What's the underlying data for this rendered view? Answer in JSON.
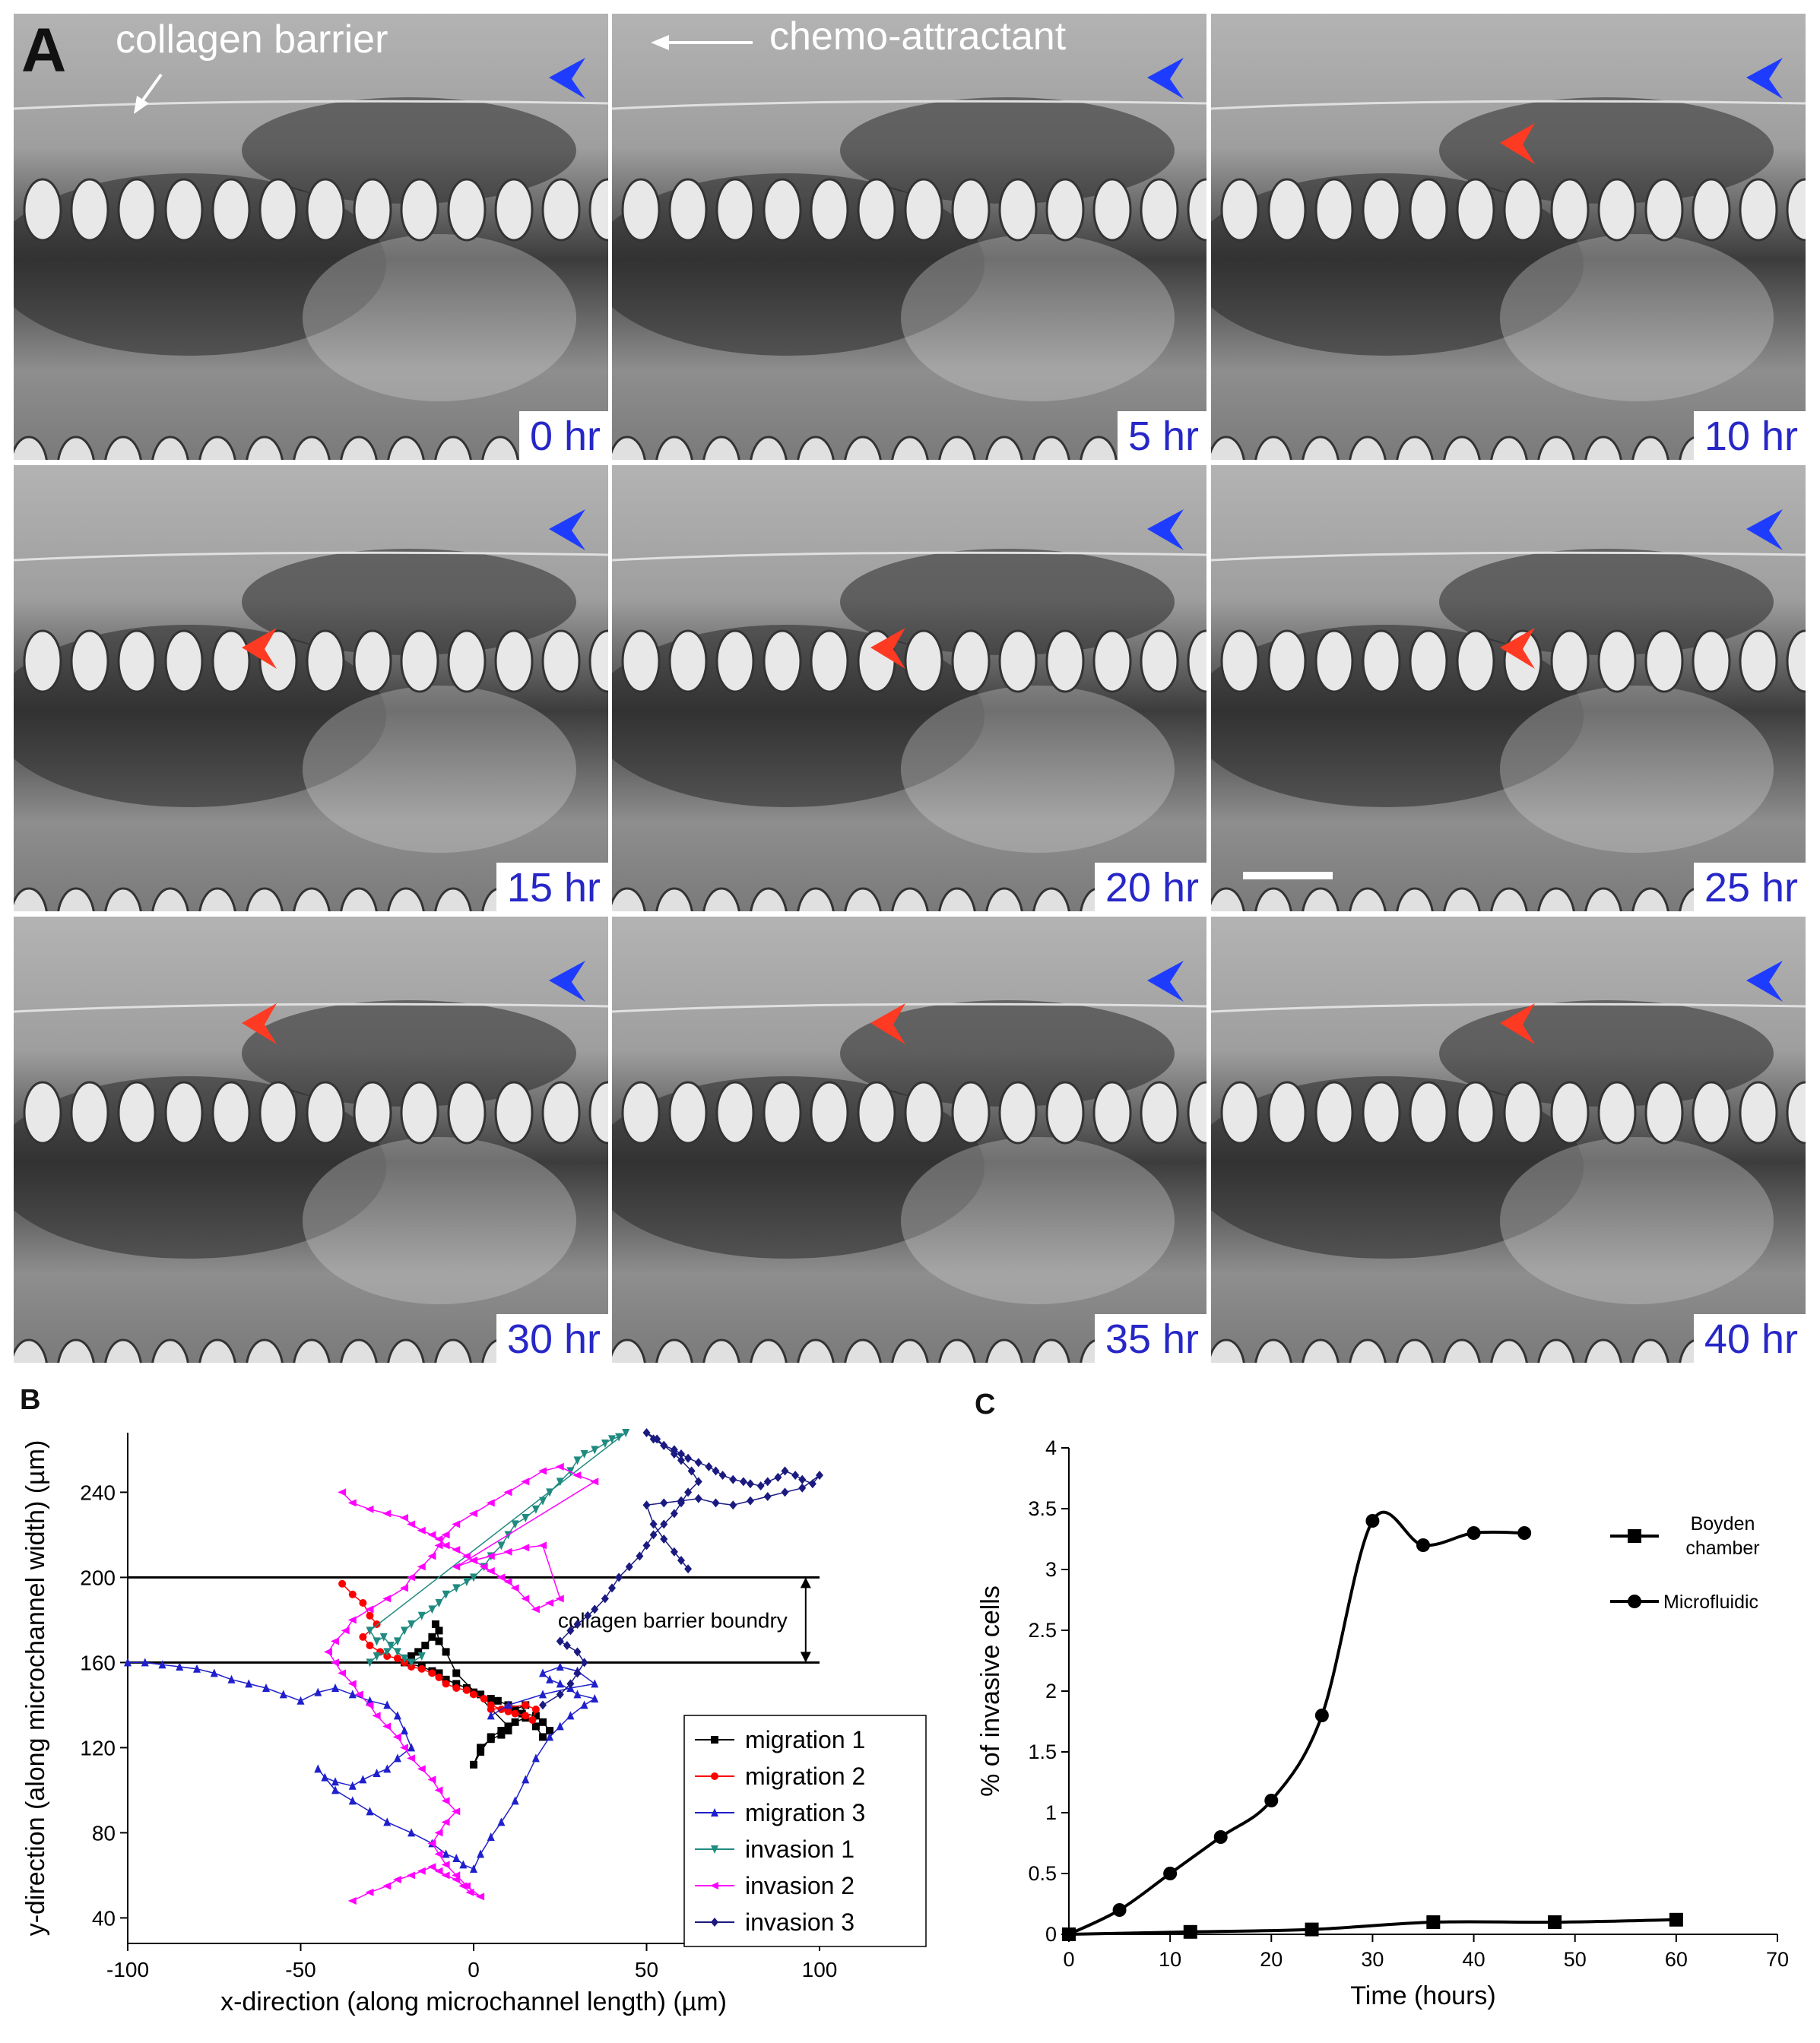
{
  "panelA": {
    "letter": "A",
    "labels": {
      "collagen": "collagen barrier",
      "chemo": "chemo-attractant"
    },
    "frames": [
      {
        "time": "0 hr",
        "red_arrow": false,
        "scale_bar": false
      },
      {
        "time": "5 hr",
        "red_arrow": false,
        "scale_bar": false
      },
      {
        "time": "10 hr",
        "red_arrow": true,
        "scale_bar": false
      },
      {
        "time": "15 hr",
        "red_arrow": true,
        "scale_bar": false
      },
      {
        "time": "20 hr",
        "red_arrow": true,
        "scale_bar": false
      },
      {
        "time": "25 hr",
        "red_arrow": true,
        "scale_bar": true
      },
      {
        "time": "30 hr",
        "red_arrow": true,
        "scale_bar": false
      },
      {
        "time": "35 hr",
        "red_arrow": true,
        "scale_bar": false
      },
      {
        "time": "40 hr",
        "red_arrow": true,
        "scale_bar": false
      }
    ],
    "colors": {
      "time_label": "#2727c8",
      "blue_arrow": "#1e3cff",
      "red_arrow": "#ff3a22"
    }
  },
  "panelB": {
    "letter": "B"
  },
  "panelC": {
    "letter": "C"
  },
  "chart_data": [
    {
      "type": "line",
      "xlabel": "x-direction (along microchannel length) (µm)",
      "ylabel": "y-direction (along microchannel width) (µm)",
      "xlim": [
        -100,
        100
      ],
      "ylim": [
        28,
        268
      ],
      "xticks": [
        -100,
        -50,
        0,
        50,
        100
      ],
      "yticks": [
        40,
        80,
        120,
        160,
        200,
        240
      ],
      "hlines": [
        160,
        200
      ],
      "annotation": "collagen barrier boundry",
      "legend_position": "bottom-right",
      "series": [
        {
          "name": "migration 1",
          "color": "#000000",
          "marker": "square",
          "x": [
            -10,
            -12,
            -14,
            -16,
            -18,
            -20,
            -15,
            -12,
            -10,
            -8,
            -5,
            -2,
            0,
            2,
            5,
            7,
            10,
            12,
            15,
            14,
            18,
            20,
            22,
            20,
            18,
            15,
            12,
            10,
            8,
            5,
            2,
            0,
            2,
            5,
            8,
            10,
            -5,
            -8,
            -10,
            -11
          ],
          "y": [
            175,
            172,
            168,
            165,
            163,
            160,
            158,
            156,
            155,
            152,
            150,
            148,
            146,
            145,
            143,
            142,
            140,
            138,
            140,
            136,
            135,
            132,
            128,
            125,
            130,
            134,
            132,
            128,
            126,
            124,
            120,
            112,
            118,
            125,
            128,
            130,
            155,
            165,
            170,
            178
          ]
        },
        {
          "name": "migration 2",
          "color": "#ff0000",
          "marker": "circle",
          "x": [
            -38,
            -35,
            -32,
            -30,
            -28,
            -32,
            -30,
            -27,
            -25,
            -22,
            -20,
            -18,
            -15,
            -12,
            -10,
            -8,
            -5,
            -2,
            0,
            3,
            5,
            8,
            10,
            12,
            15,
            17,
            18,
            15,
            10,
            5
          ],
          "y": [
            197,
            192,
            188,
            182,
            178,
            172,
            168,
            165,
            163,
            162,
            160,
            158,
            157,
            155,
            153,
            150,
            148,
            147,
            145,
            143,
            140,
            138,
            137,
            136,
            135,
            133,
            138,
            140,
            139,
            138
          ]
        },
        {
          "name": "migration 3",
          "color": "#1f1fcc",
          "marker": "triangle-up",
          "x": [
            -100,
            -95,
            -90,
            -85,
            -80,
            -75,
            -70,
            -65,
            -60,
            -55,
            -50,
            -45,
            -40,
            -35,
            -30,
            -25,
            -22,
            -20,
            -18,
            -22,
            -25,
            -28,
            -32,
            -35,
            -40,
            -43,
            -45,
            -40,
            -35,
            -30,
            -25,
            -18,
            -12,
            -8,
            -5,
            -3,
            0,
            2,
            5,
            8,
            12,
            15,
            18,
            22,
            25,
            28,
            32,
            35,
            30,
            25,
            22,
            20,
            25,
            30,
            35,
            28,
            20,
            10,
            5
          ],
          "y": [
            160,
            160,
            159,
            158,
            157,
            155,
            152,
            150,
            148,
            145,
            142,
            146,
            148,
            145,
            142,
            140,
            135,
            128,
            120,
            115,
            110,
            108,
            105,
            102,
            104,
            106,
            110,
            100,
            95,
            90,
            85,
            80,
            75,
            70,
            68,
            65,
            63,
            70,
            78,
            85,
            95,
            105,
            115,
            125,
            130,
            135,
            140,
            143,
            145,
            150,
            152,
            155,
            158,
            156,
            150,
            148,
            145,
            140,
            135
          ]
        },
        {
          "name": "invasion 1",
          "color": "#1f8a80",
          "marker": "triangle-down",
          "x": [
            -30,
            -28,
            -25,
            -22,
            -20,
            -18,
            -15,
            -12,
            -10,
            -8,
            -5,
            -2,
            0,
            3,
            5,
            8,
            10,
            12,
            15,
            18,
            20,
            22,
            25,
            28,
            30,
            32,
            35,
            38,
            40,
            42,
            44,
            -30,
            -28,
            -26,
            -24,
            -22,
            -20,
            -18,
            -15
          ],
          "y": [
            160,
            163,
            165,
            170,
            175,
            178,
            182,
            185,
            188,
            192,
            195,
            198,
            200,
            205,
            210,
            215,
            220,
            225,
            228,
            232,
            236,
            240,
            245,
            250,
            255,
            258,
            260,
            263,
            265,
            266,
            268,
            175,
            170,
            172,
            168,
            165,
            162,
            160,
            163
          ]
        },
        {
          "name": "invasion 2",
          "color": "#ff00ff",
          "marker": "triangle-left",
          "x": [
            -35,
            -30,
            -25,
            -22,
            -18,
            -15,
            -12,
            -10,
            -8,
            -5,
            -3,
            -1,
            2,
            -2,
            -5,
            -8,
            -10,
            -12,
            -10,
            -8,
            -5,
            -8,
            -10,
            -12,
            -15,
            -18,
            -20,
            -22,
            -25,
            -28,
            -30,
            -33,
            -35,
            -38,
            -40,
            -42,
            -40,
            -37,
            -35,
            -30,
            -25,
            -20,
            -18,
            -15,
            -12,
            -10,
            -8,
            -5,
            0,
            5,
            10,
            15,
            20,
            25,
            30,
            35,
            -5,
            0,
            5,
            10,
            15,
            20,
            25,
            22,
            18,
            15,
            12,
            10,
            8,
            5,
            3,
            0,
            -2,
            -5,
            -8,
            -10,
            -12,
            -15,
            -18,
            -20,
            -25,
            -30,
            -35,
            -38
          ],
          "y": [
            48,
            52,
            55,
            58,
            60,
            62,
            64,
            62,
            60,
            58,
            55,
            52,
            50,
            55,
            60,
            65,
            70,
            75,
            80,
            85,
            90,
            95,
            100,
            105,
            110,
            115,
            120,
            125,
            130,
            135,
            140,
            145,
            150,
            155,
            160,
            165,
            170,
            175,
            180,
            185,
            190,
            195,
            200,
            205,
            210,
            215,
            220,
            225,
            230,
            235,
            240,
            245,
            250,
            252,
            248,
            245,
            205,
            208,
            210,
            212,
            214,
            215,
            190,
            188,
            185,
            190,
            195,
            198,
            200,
            203,
            205,
            208,
            210,
            213,
            215,
            218,
            220,
            222,
            225,
            228,
            230,
            232,
            235,
            240
          ]
        },
        {
          "name": "invasion 3",
          "color": "#1a1a80",
          "marker": "diamond",
          "x": [
            20,
            25,
            28,
            30,
            32,
            30,
            27,
            25,
            28,
            30,
            33,
            35,
            38,
            40,
            42,
            45,
            48,
            50,
            52,
            55,
            58,
            60,
            62,
            65,
            63,
            60,
            58,
            55,
            52,
            50,
            53,
            55,
            58,
            60,
            62,
            65,
            68,
            70,
            72,
            75,
            78,
            80,
            83,
            85,
            88,
            90,
            93,
            95,
            98,
            100,
            95,
            90,
            85,
            80,
            75,
            70,
            65,
            60,
            55,
            50,
            52,
            55,
            58,
            60,
            62
          ],
          "y": [
            140,
            145,
            150,
            155,
            160,
            165,
            168,
            170,
            175,
            178,
            182,
            185,
            190,
            195,
            200,
            205,
            210,
            215,
            220,
            225,
            230,
            235,
            240,
            245,
            250,
            255,
            258,
            262,
            265,
            268,
            265,
            262,
            260,
            258,
            256,
            254,
            252,
            250,
            248,
            246,
            245,
            244,
            243,
            245,
            247,
            250,
            248,
            246,
            244,
            248,
            242,
            240,
            238,
            236,
            234,
            235,
            237,
            236,
            235,
            234,
            225,
            218,
            212,
            208,
            204
          ]
        }
      ]
    },
    {
      "type": "line",
      "xlabel": "Time (hours)",
      "ylabel": "% of invasive cells",
      "xlim": [
        0,
        70
      ],
      "ylim": [
        0,
        4
      ],
      "xticks": [
        0,
        10,
        20,
        30,
        40,
        50,
        60,
        70
      ],
      "yticks": [
        0,
        0.5,
        1,
        1.5,
        2,
        2.5,
        3,
        3.5,
        4
      ],
      "legend_position": "top-right",
      "series": [
        {
          "name": "Boyden chamber",
          "marker": "square",
          "x": [
            0,
            12,
            24,
            36,
            48,
            60
          ],
          "y": [
            0,
            0.02,
            0.04,
            0.1,
            0.1,
            0.12
          ]
        },
        {
          "name": "Microfluidic",
          "marker": "circle",
          "x": [
            0,
            5,
            10,
            15,
            20,
            25,
            30,
            35,
            40,
            45
          ],
          "y": [
            0,
            0.2,
            0.5,
            0.8,
            1.1,
            1.8,
            3.4,
            3.2,
            3.3,
            3.3
          ]
        }
      ]
    }
  ]
}
